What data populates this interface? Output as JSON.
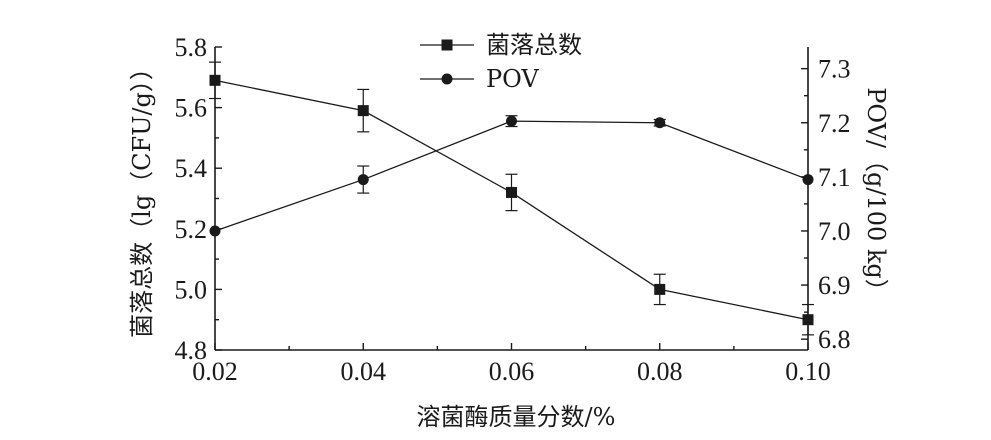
{
  "chart_data": {
    "type": "line",
    "xlabel": "溶菌酶质量分数/%",
    "ylabel_left": "菌落总数（lg（CFU/g））",
    "ylabel_right": "POV/（g/100 kg）",
    "x": [
      0.02,
      0.04,
      0.06,
      0.08,
      0.1
    ],
    "x_tick_labels": [
      "0.02",
      "0.04",
      "0.06",
      "0.08",
      "0.10"
    ],
    "ylim_left": [
      4.8,
      5.8
    ],
    "y_left_tick_labels": [
      "4.8",
      "5.0",
      "5.2",
      "5.4",
      "5.6",
      "5.8"
    ],
    "y_left_ticks": [
      4.8,
      5.0,
      5.2,
      5.4,
      5.6,
      5.8
    ],
    "ylim_right": [
      6.78,
      7.34
    ],
    "y_right_tick_labels": [
      "6.8",
      "6.9",
      "7.0",
      "7.1",
      "7.2",
      "7.3"
    ],
    "y_right_ticks": [
      6.8,
      6.9,
      7.0,
      7.1,
      7.2,
      7.3
    ],
    "legend_position": "top-center",
    "grid": false,
    "series": [
      {
        "name": "菌落总数",
        "axis": "left",
        "marker": "square",
        "color": "#1a1a1a",
        "values": [
          5.69,
          5.59,
          5.32,
          5.0,
          4.9
        ],
        "errors": [
          0.06,
          0.07,
          0.06,
          0.05,
          0.05
        ]
      },
      {
        "name": "POV",
        "axis": "right",
        "marker": "circle",
        "color": "#1a1a1a",
        "values": [
          7.0,
          7.095,
          7.203,
          7.2,
          7.095
        ],
        "errors": [
          0.0,
          0.025,
          0.01,
          0.006,
          0.0
        ]
      }
    ]
  }
}
